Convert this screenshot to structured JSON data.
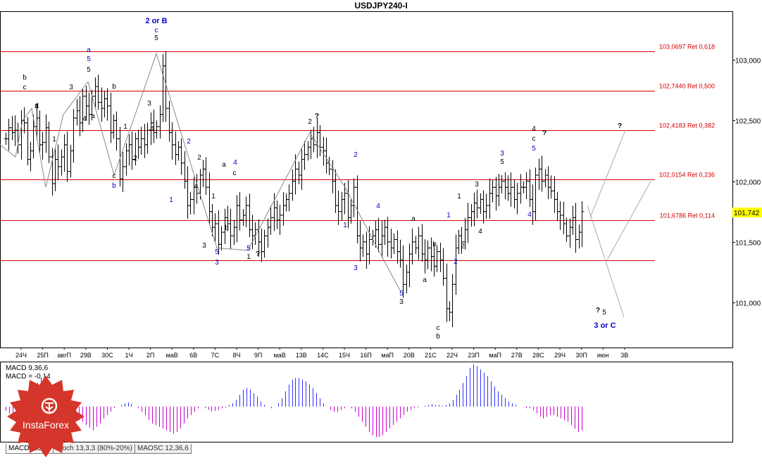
{
  "tabs": [
    "MACD 9,36,6",
    "Stoch 13,3,3 (80%-20%)",
    "MAOSC 12,36,6"
  ],
  "logo": {
    "text": "InstaForex"
  },
  "chart_data": {
    "type": "candlestick",
    "title": "USDJPY240-I",
    "symbol": "USDJPY",
    "timeframe": "H4",
    "ylim": [
      100.63,
      103.4
    ],
    "y_ticks": [
      "103,000",
      "102,500",
      "102,000",
      "101,500",
      "101,000"
    ],
    "y_tick_values": [
      103.0,
      102.5,
      102.0,
      101.5,
      101.0
    ],
    "current_price": "101,742",
    "current_price_value": 101.742,
    "x_tick_labels": [
      "24Ч",
      "25П",
      "авгП",
      "29В",
      "30С",
      "1Ч",
      "2П",
      "маВ",
      "6В",
      "7С",
      "8Ч",
      "9П",
      "маВ",
      "13В",
      "14С",
      "15Ч",
      "16П",
      "маП",
      "20В",
      "21С",
      "22Ч",
      "23П",
      "маП",
      "27В",
      "28С",
      "29Ч",
      "30П",
      "июн",
      "3В"
    ],
    "retracements": [
      {
        "label": "103,0697 Ret 0,618",
        "value": 103.0697
      },
      {
        "label": "102,7440 Ret 0,500",
        "value": 102.744
      },
      {
        "label": "102,4183 Ret 0,382",
        "value": 102.4183
      },
      {
        "label": "102,0154 Ret 0,236",
        "value": 102.0154
      },
      {
        "label": "101,6786 Ret 0,114",
        "value": 101.6786
      },
      {
        "label": "",
        "value": 101.35
      }
    ],
    "colors": {
      "retracement": "#d40000",
      "wave_blue": "#0000cc",
      "wave_black": "#000000",
      "wave_line": "#888888",
      "macd_up": "#3333ff",
      "macd_down": "#cc00cc",
      "price_box": "#ffff00"
    },
    "close_series": [
      102.35,
      102.44,
      102.4,
      102.42,
      102.3,
      102.5,
      102.48,
      102.18,
      102.25,
      102.45,
      102.52,
      102.3,
      102.32,
      102.44,
      102.2,
      101.98,
      102.18,
      102.12,
      102.2,
      102.3,
      102.08,
      102.25,
      102.52,
      102.58,
      102.48,
      102.7,
      102.62,
      102.55,
      102.7,
      102.78,
      102.65,
      102.6,
      102.68,
      102.62,
      102.4,
      102.5,
      102.35,
      102.02,
      102.12,
      102.25,
      102.3,
      102.18,
      102.35,
      102.28,
      102.35,
      102.3,
      102.42,
      102.48,
      102.4,
      102.45,
      102.55,
      102.95,
      102.6,
      102.4,
      102.3,
      102.22,
      102.28,
      102.15,
      102.0,
      101.8,
      101.85,
      101.95,
      101.9,
      102.05,
      102.1,
      101.95,
      101.75,
      101.62,
      101.65,
      101.48,
      101.58,
      101.7,
      101.65,
      101.55,
      101.62,
      101.8,
      101.68,
      101.72,
      101.8,
      101.6,
      101.55,
      101.6,
      101.5,
      101.42,
      101.55,
      101.62,
      101.7,
      101.78,
      101.68,
      101.72,
      101.8,
      101.85,
      101.9,
      102.0,
      102.1,
      102.05,
      102.18,
      102.22,
      102.28,
      102.35,
      102.3,
      102.4,
      102.28,
      102.25,
      102.15,
      102.1,
      102.0,
      101.8,
      101.75,
      101.85,
      101.9,
      101.7,
      101.8,
      101.95,
      101.55,
      101.45,
      101.5,
      101.4,
      101.52,
      101.55,
      101.6,
      101.48,
      101.55,
      101.62,
      101.5,
      101.45,
      101.52,
      101.42,
      101.35,
      101.15,
      101.25,
      101.4,
      101.5,
      101.45,
      101.55,
      101.4,
      101.35,
      101.45,
      101.38,
      101.3,
      101.42,
      101.35,
      101.2,
      100.95,
      100.92,
      101.15,
      101.45,
      101.55,
      101.5,
      101.6,
      101.7,
      101.75,
      101.82,
      101.78,
      101.85,
      101.75,
      101.8,
      101.9,
      101.95,
      101.88,
      101.95,
      102.0,
      101.95,
      101.9,
      101.95,
      101.85,
      101.9,
      101.95,
      101.95,
      102.0,
      101.85,
      101.75,
      102.05,
      102.1,
      102.0,
      102.05,
      101.95,
      101.92,
      101.85,
      101.75,
      101.72,
      101.65,
      101.55,
      101.62,
      101.7,
      101.52,
      101.58,
      101.75
    ],
    "annotations": [
      {
        "text": "2 or B",
        "color": "blue",
        "pos": "peak"
      },
      {
        "text": "c",
        "color": "blue"
      },
      {
        "text": "5",
        "color": "black"
      },
      {
        "text": "a",
        "color": "blue"
      },
      {
        "text": "5",
        "color": "blue"
      },
      {
        "text": "5",
        "color": "black"
      },
      {
        "text": "b",
        "color": "black"
      },
      {
        "text": "c",
        "color": "black"
      },
      {
        "text": "a",
        "color": "black"
      },
      {
        "text": "3",
        "color": "black"
      },
      {
        "text": "d",
        "color": "black"
      },
      {
        "text": "1",
        "color": "black"
      },
      {
        "text": "4",
        "color": "black"
      },
      {
        "text": "a",
        "color": "black"
      },
      {
        "text": "b",
        "color": "black"
      },
      {
        "text": "1",
        "color": "black"
      },
      {
        "text": "3",
        "color": "black"
      },
      {
        "text": "4",
        "color": "black"
      },
      {
        "text": "2",
        "color": "black"
      },
      {
        "text": "c",
        "color": "black"
      },
      {
        "text": "b",
        "color": "blue"
      },
      {
        "text": "2",
        "color": "blue"
      },
      {
        "text": "2",
        "color": "black"
      },
      {
        "text": "1",
        "color": "blue"
      },
      {
        "text": "4",
        "color": "black"
      },
      {
        "text": "1",
        "color": "black"
      },
      {
        "text": "3",
        "color": "black"
      },
      {
        "text": "5",
        "color": "blue"
      },
      {
        "text": "3",
        "color": "blue"
      },
      {
        "text": "a",
        "color": "black"
      },
      {
        "text": "c",
        "color": "black"
      },
      {
        "text": "4",
        "color": "blue"
      },
      {
        "text": "b",
        "color": "black"
      },
      {
        "text": "5",
        "color": "blue"
      },
      {
        "text": "1",
        "color": "black"
      },
      {
        "text": "?",
        "color": "black"
      },
      {
        "text": "2",
        "color": "black"
      },
      {
        "text": "?",
        "color": "black"
      },
      {
        "text": "2",
        "color": "blue"
      },
      {
        "text": "1",
        "color": "blue"
      },
      {
        "text": "3",
        "color": "blue"
      },
      {
        "text": "4",
        "color": "blue"
      },
      {
        "text": "a",
        "color": "black"
      },
      {
        "text": "5",
        "color": "blue"
      },
      {
        "text": "3",
        "color": "black"
      },
      {
        "text": "b",
        "color": "black"
      },
      {
        "text": "a",
        "color": "black"
      },
      {
        "text": "c",
        "color": "black"
      },
      {
        "text": "b",
        "color": "black"
      },
      {
        "text": "1",
        "color": "blue"
      },
      {
        "text": "2",
        "color": "blue"
      },
      {
        "text": "1",
        "color": "black"
      },
      {
        "text": "2",
        "color": "black"
      },
      {
        "text": "3",
        "color": "black"
      },
      {
        "text": "4",
        "color": "black"
      },
      {
        "text": "3",
        "color": "blue"
      },
      {
        "text": "5",
        "color": "black"
      },
      {
        "text": "4",
        "color": "black"
      },
      {
        "text": "c",
        "color": "black"
      },
      {
        "text": "?",
        "color": "black"
      },
      {
        "text": "5",
        "color": "blue"
      },
      {
        "text": "4",
        "color": "blue"
      },
      {
        "text": "?",
        "color": "black"
      },
      {
        "text": "?",
        "color": "black"
      },
      {
        "text": "5",
        "color": "black"
      },
      {
        "text": "3 or C",
        "color": "blue"
      }
    ],
    "macd": {
      "label1": "MACD 9,36,6",
      "label2": "MACD = -0.14",
      "histogram": [
        -0.05,
        -0.08,
        -0.1,
        -0.06,
        0.02,
        0.06,
        0.1,
        0.14,
        0.2,
        0.28,
        0.34,
        0.36,
        0.3,
        0.24,
        0.18,
        0.1,
        0.04,
        -0.02,
        -0.06,
        -0.1,
        -0.14,
        -0.16,
        -0.18,
        -0.22,
        -0.25,
        -0.28,
        -0.24,
        -0.2,
        -0.14,
        -0.1,
        -0.06,
        -0.02,
        0.0,
        0.02,
        0.04,
        0.05,
        0.03,
        0.0,
        -0.02,
        -0.06,
        -0.1,
        -0.16,
        -0.2,
        -0.22,
        -0.24,
        -0.26,
        -0.28,
        -0.3,
        -0.32,
        -0.3,
        -0.26,
        -0.2,
        -0.14,
        -0.1,
        -0.06,
        -0.02,
        0.0,
        -0.02,
        -0.04,
        -0.06,
        -0.05,
        -0.04,
        -0.02,
        -0.01,
        0.02,
        0.04,
        0.08,
        0.14,
        0.2,
        0.22,
        0.2,
        0.16,
        0.12,
        0.06,
        0.02,
        0.0,
        -0.02,
        0.0,
        0.04,
        0.1,
        0.18,
        0.26,
        0.32,
        0.34,
        0.34,
        0.32,
        0.3,
        0.26,
        0.22,
        0.16,
        0.1,
        0.04,
        0.0,
        -0.04,
        -0.06,
        -0.06,
        -0.04,
        -0.02,
        0.0,
        -0.02,
        -0.06,
        -0.12,
        -0.18,
        -0.24,
        -0.3,
        -0.34,
        -0.36,
        -0.36,
        -0.34,
        -0.3,
        -0.26,
        -0.22,
        -0.18,
        -0.14,
        -0.1,
        -0.06,
        -0.04,
        -0.02,
        -0.01,
        0.0,
        0.01,
        0.02,
        0.03,
        0.02,
        0.02,
        0.01,
        0.02,
        0.04,
        0.08,
        0.14,
        0.2,
        0.28,
        0.36,
        0.46,
        0.5,
        0.48,
        0.44,
        0.4,
        0.36,
        0.3,
        0.24,
        0.18,
        0.14,
        0.1,
        0.06,
        0.04,
        0.02,
        0.0,
        0.0,
        -0.02,
        -0.02,
        -0.04,
        -0.08,
        -0.12,
        -0.14,
        -0.12,
        -0.1,
        -0.1,
        -0.12,
        -0.14,
        -0.16,
        -0.18,
        -0.22,
        -0.26,
        -0.3,
        -0.28
      ]
    }
  }
}
